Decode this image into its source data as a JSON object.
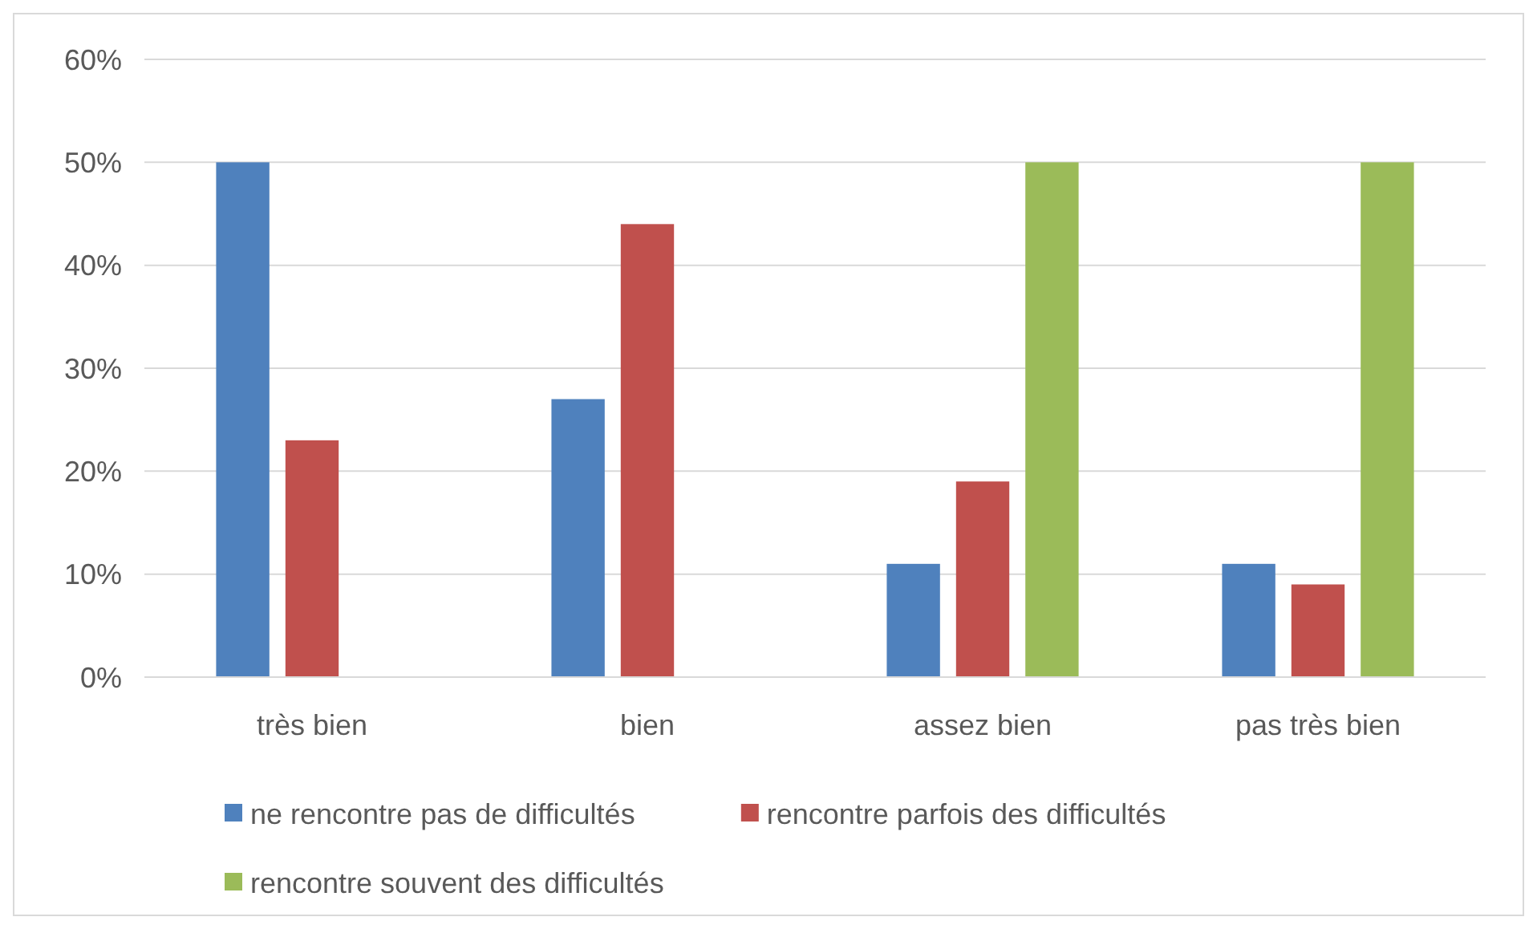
{
  "chart_data": {
    "type": "bar",
    "categories": [
      "très bien",
      "bien",
      "assez bien",
      "pas très bien"
    ],
    "series": [
      {
        "name": "ne rencontre pas de difficultés",
        "color": "#4f81bd",
        "values": [
          50,
          27,
          11,
          11
        ]
      },
      {
        "name": "rencontre parfois des difficultés",
        "color": "#c0504d",
        "values": [
          23,
          44,
          19,
          9
        ]
      },
      {
        "name": "rencontre souvent des difficultés",
        "color": "#9bbb59",
        "values": [
          0,
          0,
          50,
          50
        ]
      }
    ],
    "ylim": [
      0,
      60
    ],
    "yticks": [
      {
        "value": 0,
        "label": "0%"
      },
      {
        "value": 10,
        "label": "10%"
      },
      {
        "value": 20,
        "label": "20%"
      },
      {
        "value": 30,
        "label": "30%"
      },
      {
        "value": 40,
        "label": "40%"
      },
      {
        "value": 50,
        "label": "50%"
      },
      {
        "value": 60,
        "label": "60%"
      }
    ],
    "grid": "y",
    "legend": "bottom"
  }
}
